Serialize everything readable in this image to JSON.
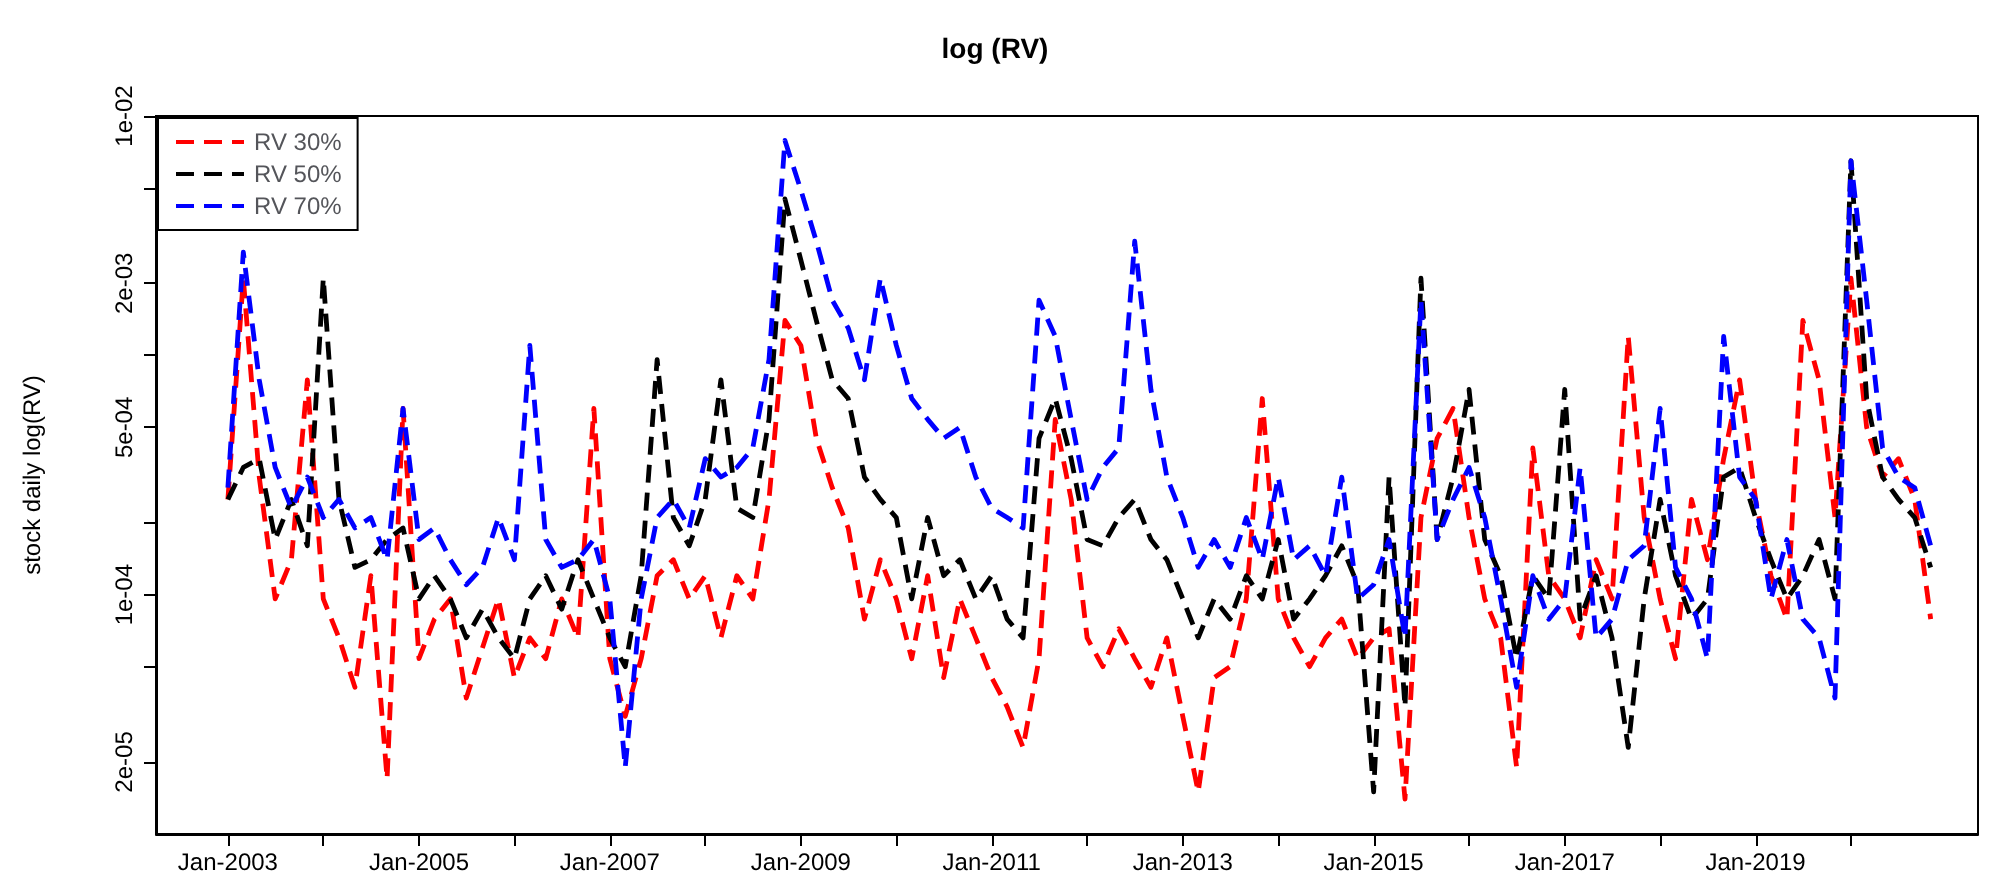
{
  "chart_data": {
    "type": "line",
    "title": "log (RV)",
    "ylabel": "stock daily log(RV)",
    "log": "y",
    "grid": false,
    "legend": "top left",
    "line_style": "dashed",
    "marker": "none",
    "ylim": [
      1e-05,
      0.01
    ],
    "yticks": [
      {
        "value": 0.01,
        "label": "1e-02"
      },
      {
        "value": 0.005,
        "label": null
      },
      {
        "value": 0.002,
        "label": "2e-03"
      },
      {
        "value": 0.001,
        "label": null
      },
      {
        "value": 0.0005,
        "label": "5e-04"
      },
      {
        "value": 0.0002,
        "label": null
      },
      {
        "value": 0.0001,
        "label": "1e-04"
      },
      {
        "value": 5e-05,
        "label": null
      },
      {
        "value": 2e-05,
        "label": "2e-05"
      }
    ],
    "xlim": [
      "2002-04",
      "2021-05"
    ],
    "xticks": [
      {
        "value": "2003-01",
        "label": "Jan-2003"
      },
      {
        "value": "2004-01",
        "label": null
      },
      {
        "value": "2005-01",
        "label": "Jan-2005"
      },
      {
        "value": "2006-01",
        "label": null
      },
      {
        "value": "2007-01",
        "label": "Jan-2007"
      },
      {
        "value": "2008-01",
        "label": null
      },
      {
        "value": "2009-01",
        "label": "Jan-2009"
      },
      {
        "value": "2010-01",
        "label": null
      },
      {
        "value": "2011-01",
        "label": "Jan-2011"
      },
      {
        "value": "2012-01",
        "label": null
      },
      {
        "value": "2013-01",
        "label": "Jan-2013"
      },
      {
        "value": "2014-01",
        "label": null
      },
      {
        "value": "2015-01",
        "label": "Jan-2015"
      },
      {
        "value": "2016-01",
        "label": null
      },
      {
        "value": "2017-01",
        "label": "Jan-2017"
      },
      {
        "value": "2018-01",
        "label": null
      },
      {
        "value": "2019-01",
        "label": "Jan-2019"
      },
      {
        "value": "2020-01",
        "label": null
      }
    ],
    "x": [
      "2003-01",
      "2003-03",
      "2003-05",
      "2003-07",
      "2003-09",
      "2003-11",
      "2004-01",
      "2004-03",
      "2004-05",
      "2004-07",
      "2004-09",
      "2004-11",
      "2005-01",
      "2005-03",
      "2005-05",
      "2005-07",
      "2005-09",
      "2005-11",
      "2006-01",
      "2006-03",
      "2006-05",
      "2006-07",
      "2006-09",
      "2006-11",
      "2007-01",
      "2007-03",
      "2007-05",
      "2007-07",
      "2007-09",
      "2007-11",
      "2008-01",
      "2008-03",
      "2008-05",
      "2008-07",
      "2008-09",
      "2008-11",
      "2009-01",
      "2009-03",
      "2009-05",
      "2009-07",
      "2009-09",
      "2009-11",
      "2010-01",
      "2010-03",
      "2010-05",
      "2010-07",
      "2010-09",
      "2010-11",
      "2011-01",
      "2011-03",
      "2011-05",
      "2011-07",
      "2011-09",
      "2011-11",
      "2012-01",
      "2012-03",
      "2012-05",
      "2012-07",
      "2012-09",
      "2012-11",
      "2013-01",
      "2013-03",
      "2013-05",
      "2013-07",
      "2013-09",
      "2013-11",
      "2014-01",
      "2014-03",
      "2014-05",
      "2014-07",
      "2014-09",
      "2014-11",
      "2015-01",
      "2015-03",
      "2015-05",
      "2015-07",
      "2015-09",
      "2015-11",
      "2016-01",
      "2016-03",
      "2016-05",
      "2016-07",
      "2016-09",
      "2016-11",
      "2017-01",
      "2017-03",
      "2017-05",
      "2017-07",
      "2017-09",
      "2017-11",
      "2018-01",
      "2018-03",
      "2018-05",
      "2018-07",
      "2018-09",
      "2018-11",
      "2019-01",
      "2019-03",
      "2019-05",
      "2019-07",
      "2019-09",
      "2019-11",
      "2020-01",
      "2020-03",
      "2020-05",
      "2020-07",
      "2020-09",
      "2020-11"
    ],
    "series": [
      {
        "name": "RV 30%",
        "color": "#ff0000",
        "values": [
          0.00025,
          0.0021,
          0.00031,
          9.6e-05,
          0.00014,
          0.00079,
          9.6e-05,
          6.6e-05,
          4.1e-05,
          0.00012,
          1.7e-05,
          0.0006,
          5.4e-05,
          7.9e-05,
          9.6e-05,
          3.7e-05,
          6e-05,
          9.6e-05,
          4.5e-05,
          6.6e-05,
          5.4e-05,
          9.6e-05,
          6.6e-05,
          0.0006,
          5.4e-05,
          3.1e-05,
          5.4e-05,
          0.00012,
          0.00014,
          9.6e-05,
          0.00012,
          6.6e-05,
          0.00012,
          9.6e-05,
          0.00025,
          0.0014,
          0.0011,
          0.00045,
          0.00028,
          0.00019,
          7.9e-05,
          0.00014,
          9.6e-05,
          5.4e-05,
          0.00012,
          4.5e-05,
          9.6e-05,
          6.6e-05,
          4.5e-05,
          3.4e-05,
          2.3e-05,
          5.4e-05,
          0.00054,
          0.00025,
          6.6e-05,
          5e-05,
          7.2e-05,
          5.4e-05,
          4.1e-05,
          6.6e-05,
          3.1e-05,
          1.5e-05,
          4.5e-05,
          5e-05,
          9.6e-05,
          0.00066,
          9.6e-05,
          6.6e-05,
          5e-05,
          6.6e-05,
          7.9e-05,
          5.4e-05,
          6.6e-05,
          7.2e-05,
          1.4e-05,
          0.00021,
          0.00045,
          0.0006,
          0.00021,
          9.6e-05,
          6.6e-05,
          1.9e-05,
          0.00041,
          0.00012,
          9.6e-05,
          6.6e-05,
          0.00014,
          9.6e-05,
          0.0012,
          0.00021,
          9.6e-05,
          5.4e-05,
          0.00025,
          0.00014,
          0.00037,
          0.00079,
          0.00025,
          0.00012,
          7.9e-05,
          0.0014,
          0.00079,
          0.00021,
          0.0021,
          0.0005,
          0.00031,
          0.00037,
          0.00025,
          7.9e-05
        ]
      },
      {
        "name": "RV 50%",
        "color": "#000000",
        "values": [
          0.00025,
          0.00034,
          0.00037,
          0.00017,
          0.00025,
          0.00016,
          0.0021,
          0.00025,
          0.00013,
          0.00014,
          0.00017,
          0.00019,
          9.6e-05,
          0.00012,
          9.6e-05,
          6.6e-05,
          8.7e-05,
          6.6e-05,
          5.4e-05,
          9.6e-05,
          0.00012,
          8.7e-05,
          0.00014,
          9.6e-05,
          6.6e-05,
          5e-05,
          0.00012,
          0.00096,
          0.00021,
          0.00016,
          0.00025,
          0.00079,
          0.00023,
          0.00021,
          0.00054,
          0.0045,
          0.0025,
          0.0014,
          0.00079,
          0.00066,
          0.00031,
          0.00025,
          0.00021,
          9.6e-05,
          0.00021,
          0.00012,
          0.00014,
          9.6e-05,
          0.00012,
          7.9e-05,
          6.6e-05,
          0.00045,
          0.00066,
          0.00037,
          0.00017,
          0.00016,
          0.00021,
          0.00025,
          0.00017,
          0.00014,
          9.6e-05,
          6.6e-05,
          9.6e-05,
          7.9e-05,
          0.00012,
          9.6e-05,
          0.00017,
          7.9e-05,
          9.6e-05,
          0.00012,
          0.00016,
          0.00011,
          1.5e-05,
          0.00031,
          3.4e-05,
          0.0021,
          0.00017,
          0.00031,
          0.00072,
          0.00017,
          0.00012,
          5.4e-05,
          0.00012,
          9.6e-05,
          0.00072,
          7.9e-05,
          0.00012,
          6.6e-05,
          2.3e-05,
          9.6e-05,
          0.00025,
          0.00012,
          7.9e-05,
          9.6e-05,
          0.00031,
          0.00034,
          0.00021,
          0.00014,
          9.6e-05,
          0.00012,
          0.00017,
          9.6e-05,
          0.0065,
          0.00066,
          0.00031,
          0.00025,
          0.00021,
          0.00013
        ]
      },
      {
        "name": "RV 70%",
        "color": "#0000ff",
        "values": [
          0.00028,
          0.0027,
          0.00079,
          0.00034,
          0.00023,
          0.00031,
          0.00021,
          0.00025,
          0.00019,
          0.00021,
          0.00014,
          0.0006,
          0.00017,
          0.00019,
          0.00014,
          0.00011,
          0.00013,
          0.00021,
          0.00014,
          0.0011,
          0.00017,
          0.00013,
          0.00014,
          0.00017,
          9.6e-05,
          1.9e-05,
          9.6e-05,
          0.00021,
          0.00025,
          0.00019,
          0.00037,
          0.00031,
          0.00034,
          0.00041,
          0.00096,
          0.0079,
          0.0049,
          0.003,
          0.0017,
          0.0013,
          0.00079,
          0.0021,
          0.0011,
          0.00066,
          0.00054,
          0.00045,
          0.0005,
          0.00031,
          0.00023,
          0.00021,
          0.00019,
          0.0017,
          0.0012,
          0.00054,
          0.00025,
          0.00034,
          0.00041,
          0.003,
          0.00072,
          0.00031,
          0.00021,
          0.00013,
          0.00017,
          0.00013,
          0.00021,
          0.00014,
          0.00031,
          0.00014,
          0.00016,
          0.00012,
          0.00031,
          9.6e-05,
          0.00011,
          0.00017,
          6.6e-05,
          0.0017,
          0.00017,
          0.00025,
          0.00034,
          0.00021,
          9.6e-05,
          4.1e-05,
          0.00012,
          7.9e-05,
          9.6e-05,
          0.00034,
          6.6e-05,
          7.9e-05,
          0.00014,
          0.00016,
          0.0006,
          0.00013,
          9.6e-05,
          5.4e-05,
          0.0012,
          0.00031,
          0.00025,
          9.6e-05,
          0.00017,
          7.9e-05,
          6.6e-05,
          3.7e-05,
          0.0065,
          0.0017,
          0.00041,
          0.00031,
          0.00028,
          0.00016
        ]
      }
    ]
  }
}
